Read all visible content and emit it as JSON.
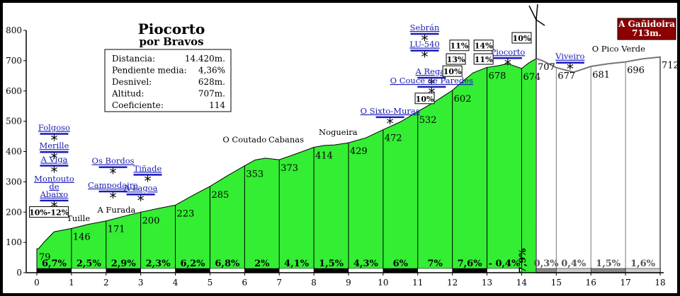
{
  "chart_data": {
    "type": "area",
    "title": "Piocorto",
    "subtitle": "por Bravos",
    "xlim": [
      0,
      18
    ],
    "ylim": [
      0,
      800
    ],
    "x_ticks": [
      "0",
      "1",
      "2",
      "3",
      "4",
      "5",
      "6",
      "7",
      "8",
      "9",
      "10",
      "11",
      "12",
      "13",
      "14",
      "15",
      "16",
      "17",
      "18"
    ],
    "y_ticks": [
      "0",
      "100",
      "200",
      "300",
      "400",
      "500",
      "600",
      "700",
      "800"
    ],
    "grid": false,
    "profile": {
      "x": [
        0,
        0.05,
        0.2,
        0.5,
        1.0,
        1.5,
        2.0,
        2.5,
        3.0,
        3.5,
        4.0,
        4.5,
        5.0,
        5.5,
        6.0,
        6.3,
        6.6,
        7.0,
        7.5,
        8.0,
        8.3,
        8.6,
        9.0,
        9.5,
        10.0,
        10.5,
        11.0,
        11.5,
        12.0,
        12.3,
        12.6,
        13.0,
        13.3,
        13.6,
        14.0,
        14.2,
        14.42
      ],
      "y": [
        79,
        79,
        100,
        135,
        146,
        160,
        171,
        186,
        200,
        212,
        223,
        255,
        285,
        320,
        353,
        372,
        378,
        373,
        393,
        414,
        420,
        422,
        429,
        445,
        472,
        498,
        532,
        565,
        602,
        632,
        660,
        678,
        683,
        690,
        674,
        692,
        707
      ]
    },
    "descent": {
      "x": [
        14.42,
        14.6,
        15.0,
        15.5,
        16.0,
        16.5,
        17.0,
        17.5,
        18.0
      ],
      "y": [
        707,
        700,
        677,
        662,
        681,
        690,
        696,
        706,
        712
      ]
    },
    "climb_fill": "#33ee33",
    "descent_fill": "#ffffff",
    "stats": [
      {
        "label": "Distancia:",
        "value": "14.420m."
      },
      {
        "label": "Pendiente media:",
        "value": "4,36%"
      },
      {
        "label": "Desnivel:",
        "value": "628m."
      },
      {
        "label": "Altitud:",
        "value": "707m."
      },
      {
        "label": "Coeficiente:",
        "value": "114"
      }
    ],
    "km_altitudes": [
      {
        "x": 0,
        "y": 79,
        "label": "79"
      },
      {
        "x": 1,
        "y": 146,
        "label": "146"
      },
      {
        "x": 2,
        "y": 171,
        "label": "171"
      },
      {
        "x": 3,
        "y": 200,
        "label": "200"
      },
      {
        "x": 4,
        "y": 223,
        "label": "223"
      },
      {
        "x": 5,
        "y": 285,
        "label": "285"
      },
      {
        "x": 6,
        "y": 353,
        "label": "353"
      },
      {
        "x": 7,
        "y": 373,
        "label": "373"
      },
      {
        "x": 8,
        "y": 414,
        "label": "414"
      },
      {
        "x": 9,
        "y": 429,
        "label": "429"
      },
      {
        "x": 10,
        "y": 472,
        "label": "472"
      },
      {
        "x": 11,
        "y": 532,
        "label": "532"
      },
      {
        "x": 12,
        "y": 602,
        "label": "602"
      },
      {
        "x": 13,
        "y": 678,
        "label": "678"
      },
      {
        "x": 14,
        "y": 674,
        "label": "674"
      },
      {
        "x": 14.42,
        "y": 707,
        "label": "707"
      },
      {
        "x": 15,
        "y": 677,
        "label": "677"
      },
      {
        "x": 16,
        "y": 681,
        "label": "681"
      },
      {
        "x": 17,
        "y": 696,
        "label": "696"
      },
      {
        "x": 18,
        "y": 712,
        "label": "712"
      }
    ],
    "segment_grades": [
      {
        "x0": 0,
        "x1": 1,
        "label": "6,7%"
      },
      {
        "x0": 1,
        "x1": 2,
        "label": "2,5%"
      },
      {
        "x0": 2,
        "x1": 3,
        "label": "2,9%"
      },
      {
        "x0": 3,
        "x1": 4,
        "label": "2,3%"
      },
      {
        "x0": 4,
        "x1": 5,
        "label": "6,2%"
      },
      {
        "x0": 5,
        "x1": 6,
        "label": "6,8%"
      },
      {
        "x0": 6,
        "x1": 7,
        "label": "2%"
      },
      {
        "x0": 7,
        "x1": 8,
        "label": "4,1%"
      },
      {
        "x0": 8,
        "x1": 9,
        "label": "1,5%"
      },
      {
        "x0": 9,
        "x1": 10,
        "label": "4,3%"
      },
      {
        "x0": 10,
        "x1": 11,
        "label": "6%"
      },
      {
        "x0": 11,
        "x1": 12,
        "label": "7%"
      },
      {
        "x0": 12,
        "x1": 13,
        "label": "7,6%"
      },
      {
        "x0": 13,
        "x1": 14,
        "label": "- 0,4%"
      },
      {
        "x0": 14.42,
        "x1": 15,
        "label": "0,3%"
      },
      {
        "x0": 15,
        "x1": 16,
        "label": "0,4%"
      },
      {
        "x0": 16,
        "x1": 17,
        "label": "1,5%"
      },
      {
        "x0": 17,
        "x1": 18,
        "label": "1,6%"
      }
    ],
    "last_segment_vertical": {
      "x": 14.2,
      "label": "7,9%"
    },
    "places": [
      {
        "x": 0.5,
        "y": 250,
        "label": "Montouto de Abaixo",
        "color": "blue",
        "lines": [
          "Montouto",
          "de",
          "Abaixo"
        ]
      },
      {
        "x": 0.5,
        "y": 365,
        "label": "A  Viga",
        "color": "blue"
      },
      {
        "x": 0.5,
        "y": 410,
        "label": "Merille",
        "color": "blue"
      },
      {
        "x": 0.5,
        "y": 470,
        "label": "Folgoso",
        "color": "blue"
      },
      {
        "x": 1.2,
        "y": 170,
        "label": "Tuille",
        "color": "black"
      },
      {
        "x": 2.3,
        "y": 198,
        "label": "A  Furada",
        "color": "black"
      },
      {
        "x": 2.2,
        "y": 280,
        "label": "Campodaira",
        "color": "blue"
      },
      {
        "x": 2.2,
        "y": 360,
        "label": "Os Bordos",
        "color": "blue"
      },
      {
        "x": 3.0,
        "y": 270,
        "label": "A  Lagoa",
        "color": "blue"
      },
      {
        "x": 3.2,
        "y": 335,
        "label": "Tiñade",
        "color": "blue"
      },
      {
        "x": 6.0,
        "y": 430,
        "label": "O Coutado",
        "color": "black"
      },
      {
        "x": 7.2,
        "y": 430,
        "label": "Cabanas",
        "color": "black"
      },
      {
        "x": 8.7,
        "y": 455,
        "label": "Nogueira",
        "color": "black"
      },
      {
        "x": 10.2,
        "y": 525,
        "label": "O Sixto-Muras",
        "color": "blue"
      },
      {
        "x": 11.4,
        "y": 655,
        "label": "A  Rega-",
        "color": "blue"
      },
      {
        "x": 11.4,
        "y": 625,
        "label": "O Couce de Paredes",
        "color": "blue"
      },
      {
        "x": 11.2,
        "y": 745,
        "label": "LU-540",
        "color": "blue"
      },
      {
        "x": 11.2,
        "y": 800,
        "label": "Sebrán",
        "color": "blue"
      },
      {
        "x": 13.6,
        "y": 720,
        "label": "Piocorto",
        "color": "blue"
      },
      {
        "x": 15.4,
        "y": 705,
        "label": "Viveiro",
        "color": "blue"
      },
      {
        "x": 16.8,
        "y": 730,
        "label": "O Pico Verde",
        "color": "black"
      }
    ],
    "grade_boxes": [
      {
        "x": 0.35,
        "y": 190,
        "label": "10%-12%"
      },
      {
        "x": 11.2,
        "y": 565,
        "label": "10%"
      },
      {
        "x": 12.0,
        "y": 655,
        "label": "10%"
      },
      {
        "x": 12.1,
        "y": 695,
        "label": "13%"
      },
      {
        "x": 12.2,
        "y": 740,
        "label": "11%"
      },
      {
        "x": 12.9,
        "y": 740,
        "label": "14%"
      },
      {
        "x": 12.9,
        "y": 695,
        "label": "11%"
      },
      {
        "x": 14.0,
        "y": 765,
        "label": "10%"
      }
    ],
    "summit_label": {
      "lines": [
        "A Gañidoira",
        "713m."
      ],
      "color": "#8b0000"
    }
  }
}
